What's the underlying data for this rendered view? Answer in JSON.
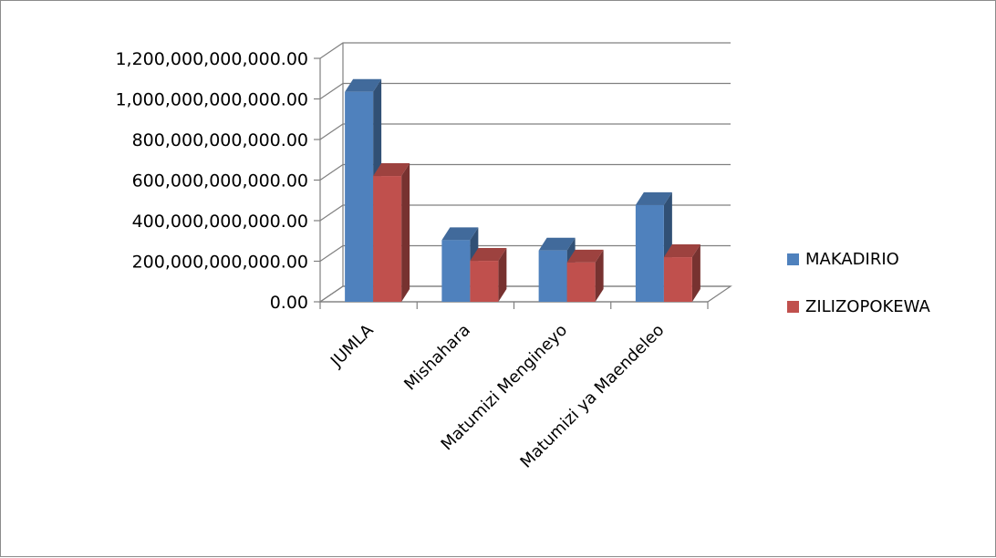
{
  "chart_data": {
    "type": "bar",
    "style": "3d-clustered-column",
    "categories": [
      "JUMLA",
      "Mishahara",
      "Matumizi Mengineyo",
      "Matumizi ya Maendeleo"
    ],
    "series": [
      {
        "name": "MAKADIRIO",
        "color": "#4f81bd",
        "values": [
          1035000000000,
          304000000000,
          253000000000,
          477000000000
        ]
      },
      {
        "name": "ZILIZOPOKEWA",
        "color": "#c0504d",
        "values": [
          620000000000,
          202000000000,
          194000000000,
          220000000000
        ]
      }
    ],
    "ylim": [
      0,
      1200000000000
    ],
    "yticks": [
      0,
      200000000000,
      400000000000,
      600000000000,
      800000000000,
      1000000000000,
      1200000000000
    ],
    "ytick_labels": [
      "0.00",
      "200,000,000,000.00",
      "400,000,000,000.00",
      "600,000,000,000.00",
      "800,000,000,000.00",
      "1,000,000,000,000.00",
      "1,200,000,000,000.00"
    ],
    "grid": true,
    "legend_position": "right",
    "title": "",
    "xlabel": "",
    "ylabel": ""
  }
}
